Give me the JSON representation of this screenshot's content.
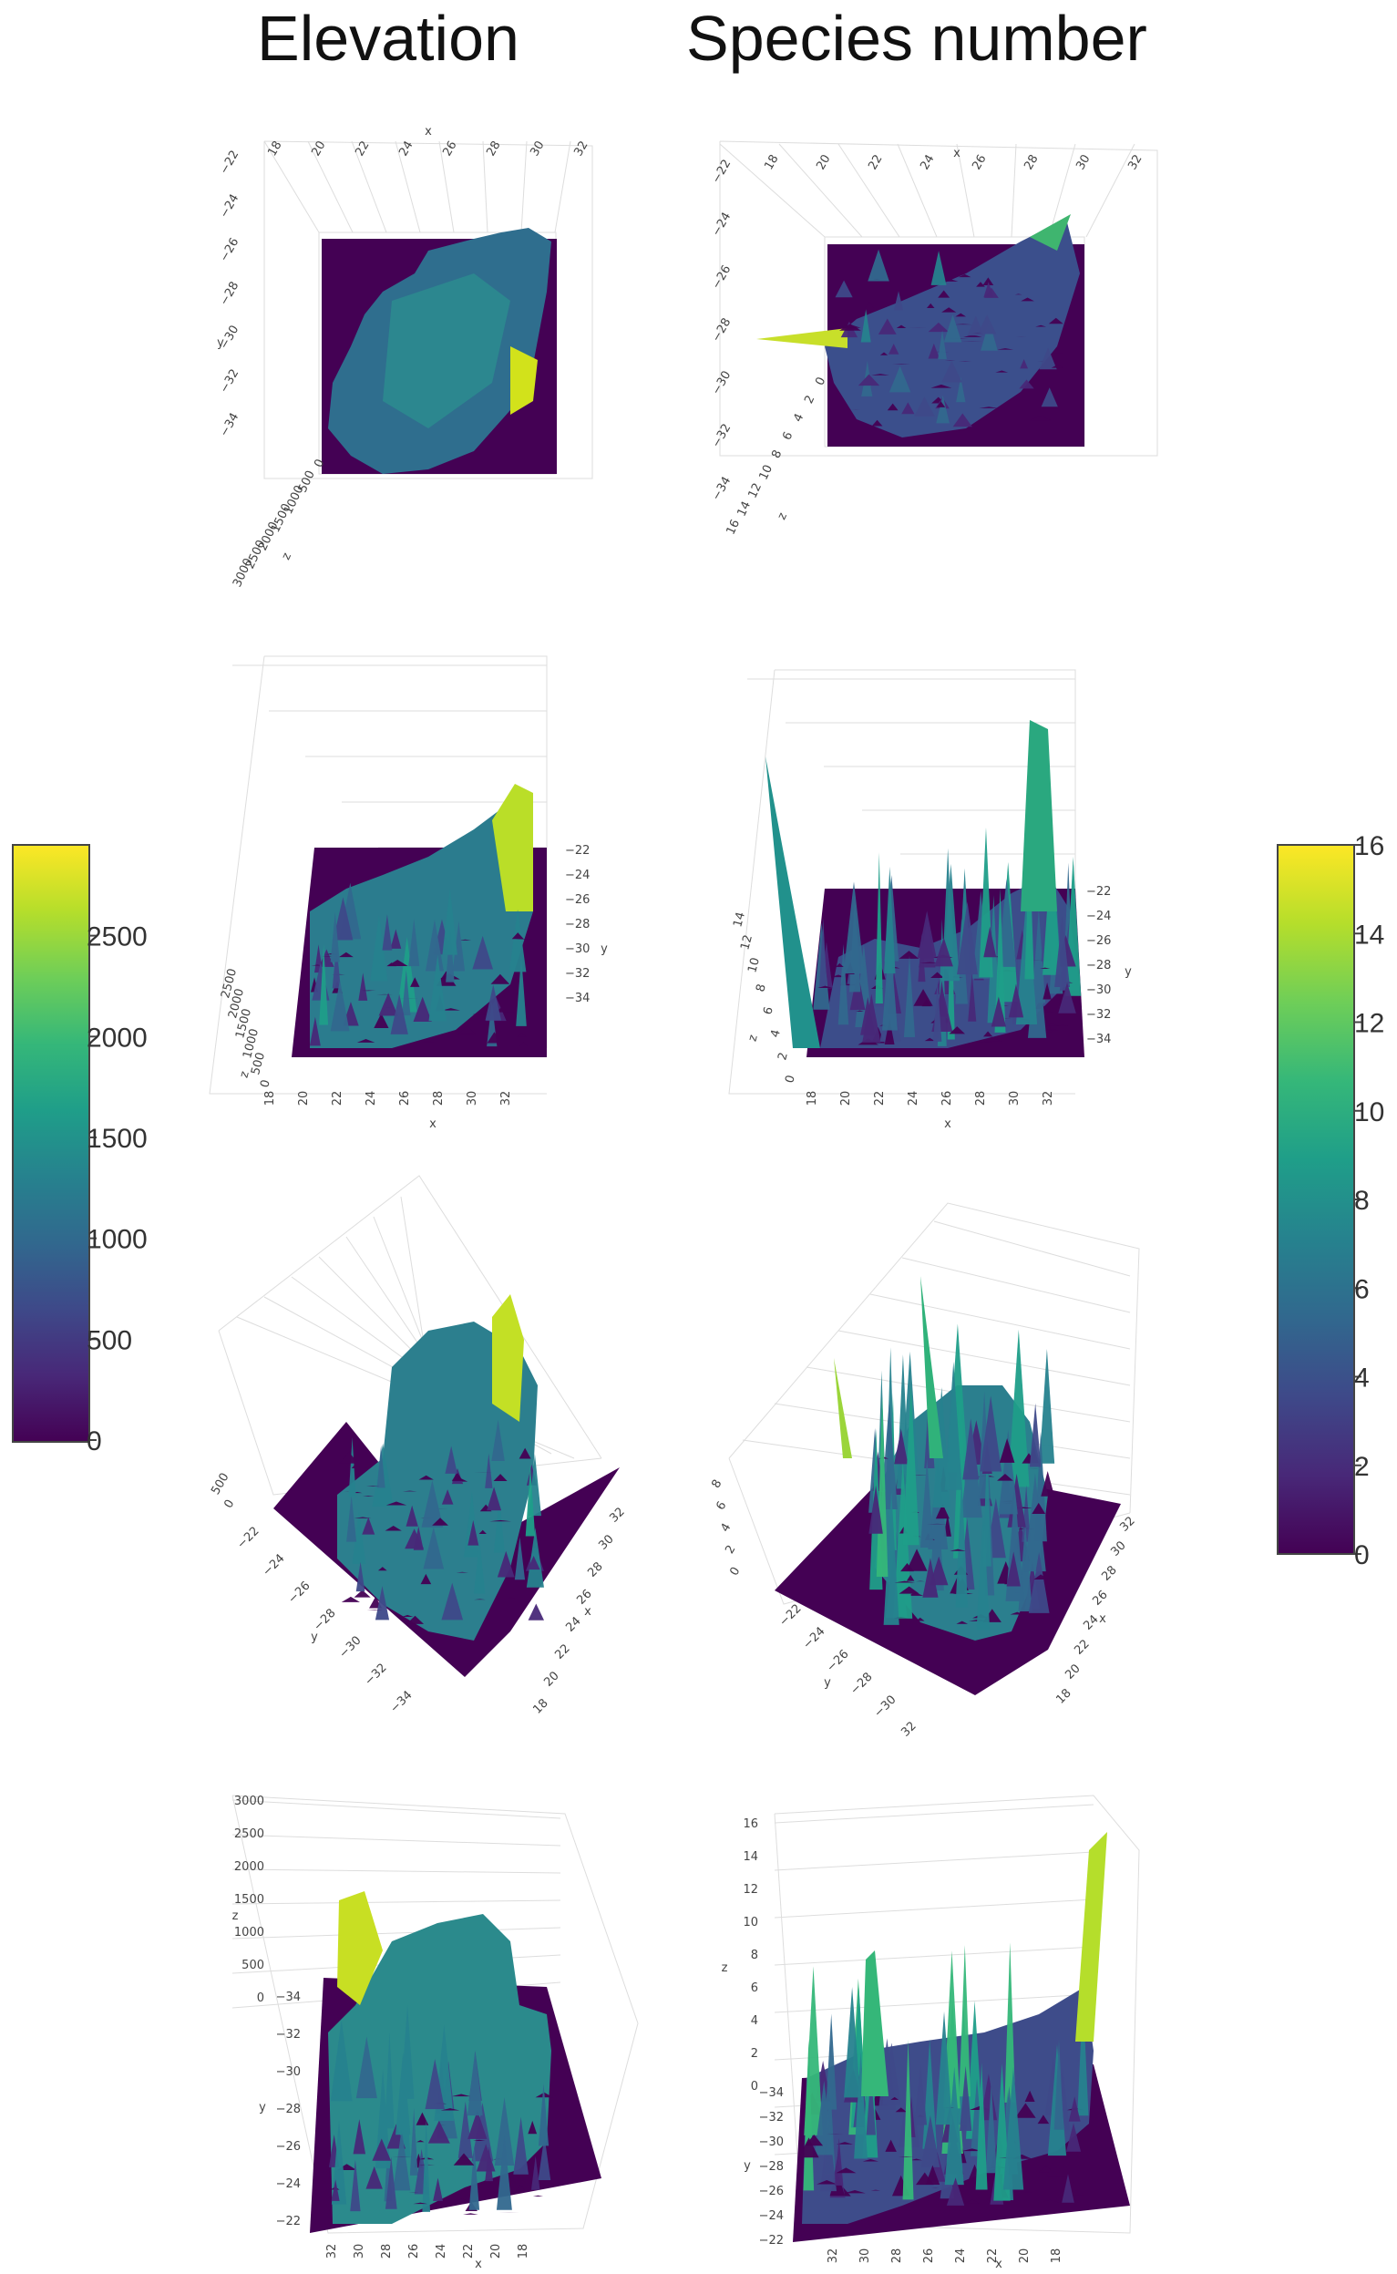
{
  "columns": {
    "elevation_title": "Elevation",
    "species_title": "Species number"
  },
  "colors": {
    "viridis": [
      "#440154",
      "#482878",
      "#3e4989",
      "#31688e",
      "#26828e",
      "#1f9e89",
      "#35b779",
      "#6ece58",
      "#b5de2b",
      "#fde725"
    ],
    "floor": "#440154",
    "grid": "#dddddd"
  },
  "chart_data": [
    {
      "type": "surface3d",
      "panel": "elevation-view-top",
      "x_ticks": [
        "18",
        "20",
        "22",
        "24",
        "26",
        "28",
        "30",
        "32"
      ],
      "y_ticks": [
        "−22",
        "−24",
        "−26",
        "−28",
        "−30",
        "−32",
        "−34"
      ],
      "z_ticks": [
        "3000",
        "2500",
        "2000",
        "1500",
        "1000",
        "500",
        "0"
      ],
      "axis_letters": [
        "x",
        "y",
        "z"
      ]
    },
    {
      "type": "surface3d",
      "panel": "species-view-top",
      "x_ticks": [
        "18",
        "20",
        "22",
        "24",
        "26",
        "28",
        "30",
        "32"
      ],
      "y_ticks": [
        "−22",
        "−24",
        "−26",
        "−28",
        "−30",
        "−32",
        "−34"
      ],
      "z_ticks": [
        "16",
        "14",
        "12",
        "10",
        "8",
        "6",
        "4",
        "2",
        "0"
      ],
      "axis_letters": [
        "x",
        "z"
      ]
    },
    {
      "type": "surface3d",
      "panel": "elevation-view-south",
      "x_ticks": [
        "18",
        "20",
        "22",
        "24",
        "26",
        "28",
        "30",
        "32"
      ],
      "y_ticks": [
        "−22",
        "−24",
        "−26",
        "−28",
        "−30",
        "−32",
        "−34"
      ],
      "z_ticks": [
        "2500",
        "2000",
        "1500",
        "1000",
        "500",
        "0"
      ],
      "axis_letters": [
        "x",
        "y",
        "z"
      ]
    },
    {
      "type": "surface3d",
      "panel": "species-view-south",
      "x_ticks": [
        "18",
        "20",
        "22",
        "24",
        "26",
        "28",
        "30",
        "32"
      ],
      "y_ticks": [
        "−22",
        "−24",
        "−26",
        "−28",
        "−30",
        "−32",
        "−34"
      ],
      "z_ticks": [
        "14",
        "12",
        "10",
        "8",
        "6",
        "4",
        "2",
        "0"
      ],
      "axis_letters": [
        "x",
        "y",
        "z"
      ]
    },
    {
      "type": "surface3d",
      "panel": "elevation-view-oblique",
      "x_ticks": [
        "32",
        "30",
        "28",
        "26",
        "24",
        "22",
        "20",
        "18"
      ],
      "y_ticks": [
        "−22",
        "−24",
        "−26",
        "−28",
        "−30",
        "−32",
        "−34"
      ],
      "z_ticks": [
        "500",
        "0"
      ],
      "axis_letters": [
        "x",
        "y"
      ]
    },
    {
      "type": "surface3d",
      "panel": "species-view-oblique",
      "x_ticks": [
        "32",
        "30",
        "28",
        "26",
        "24",
        "22",
        "20",
        "18"
      ],
      "y_ticks": [
        "−22",
        "−24",
        "−26",
        "−28",
        "−30",
        "32"
      ],
      "z_ticks": [
        "8",
        "6",
        "4",
        "2",
        "0"
      ],
      "axis_letters": [
        "x",
        "y"
      ]
    },
    {
      "type": "surface3d",
      "panel": "elevation-view-side",
      "x_ticks": [
        "32",
        "30",
        "28",
        "26",
        "24",
        "22",
        "20",
        "18"
      ],
      "y_ticks": [
        "−34",
        "−32",
        "−30",
        "−28",
        "−26",
        "−24",
        "−22"
      ],
      "z_ticks": [
        "3000",
        "2500",
        "2000",
        "1500",
        "1000",
        "500",
        "0"
      ],
      "axis_letters": [
        "x",
        "y",
        "z"
      ]
    },
    {
      "type": "surface3d",
      "panel": "species-view-side",
      "x_ticks": [
        "32",
        "30",
        "28",
        "26",
        "24",
        "22",
        "20",
        "18"
      ],
      "y_ticks": [
        "−34",
        "−32",
        "−30",
        "−28",
        "−26",
        "−24",
        "−22"
      ],
      "z_ticks": [
        "16",
        "14",
        "12",
        "10",
        "8",
        "6",
        "4",
        "2",
        "0"
      ],
      "axis_letters": [
        "x",
        "y",
        "z"
      ]
    },
    {
      "type": "colorbar",
      "panel": "elevation-colorbar",
      "ticks": [
        "2500",
        "2000",
        "1500",
        "1000",
        "500",
        "0"
      ],
      "range": [
        0,
        2950
      ]
    },
    {
      "type": "colorbar",
      "panel": "species-colorbar",
      "ticks": [
        "16",
        "14",
        "12",
        "10",
        "8",
        "6",
        "4",
        "2",
        "0"
      ],
      "range": [
        0,
        16
      ]
    }
  ]
}
